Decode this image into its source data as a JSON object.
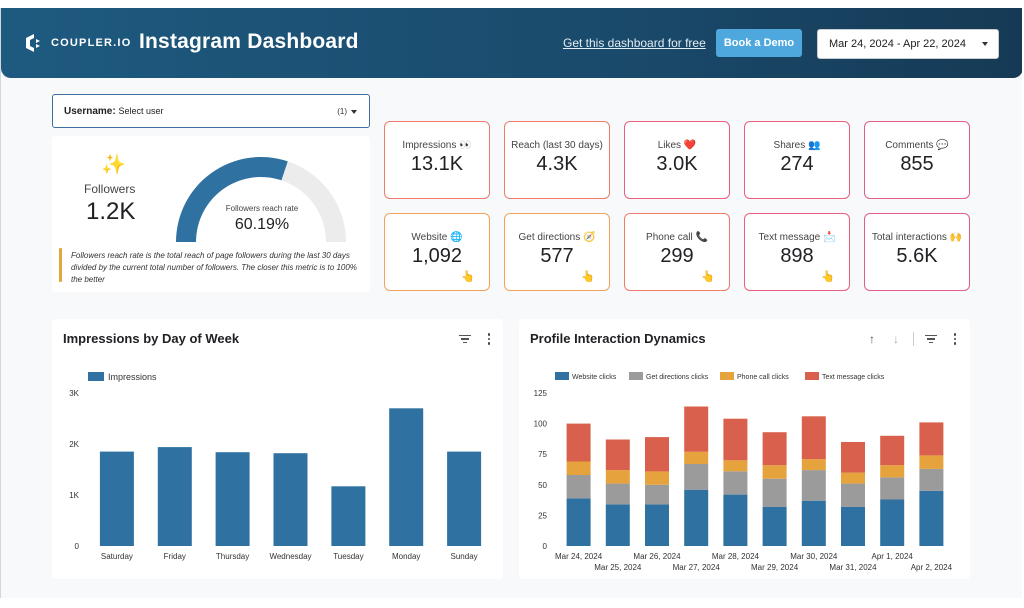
{
  "header": {
    "logo_text": "COUPLER.IO",
    "title": "Instagram Dashboard",
    "free_link": "Get this dashboard for free",
    "demo_button": "Book a Demo",
    "date_range": "Mar 24, 2024 - Apr 22, 2024"
  },
  "user_selector": {
    "label": "Username",
    "value": "Select user",
    "count": "(1)"
  },
  "followers": {
    "label": "Followers",
    "value": "1.2K",
    "gauge_label": "Followers reach rate",
    "gauge_value": "60.19%",
    "gauge_fraction": 0.6019,
    "note": "Followers reach rate is the total reach of page followers during the last 30 days divided by the current total number of followers. The closer this metric is to 100% the better"
  },
  "kpis": [
    {
      "label": "Impressions 👀",
      "value": "13.1K"
    },
    {
      "label": "Reach (last 30 days)",
      "value": "4.3K"
    },
    {
      "label": "Likes ❤️",
      "value": "3.0K"
    },
    {
      "label": "Shares 👥",
      "value": "274"
    },
    {
      "label": "Comments 💬",
      "value": "855"
    },
    {
      "label": "Website 🌐",
      "value": "1,092"
    },
    {
      "label": "Get directions 🧭",
      "value": "577"
    },
    {
      "label": "Phone call 📞",
      "value": "299"
    },
    {
      "label": "Text message 📩",
      "value": "898"
    },
    {
      "label": "Total interactions 🙌",
      "value": "5.6K"
    }
  ],
  "colors": {
    "bar": "#2f72a1",
    "website": "#2f72a1",
    "directions": "#9b9b9b",
    "phone": "#e6a23c",
    "text": "#d9604c"
  },
  "chart_data": [
    {
      "type": "bar",
      "title": "Impressions by Day of Week",
      "legend": "Impressions",
      "categories": [
        "Saturday",
        "Friday",
        "Thursday",
        "Wednesday",
        "Tuesday",
        "Monday",
        "Sunday"
      ],
      "values": [
        1850,
        1940,
        1840,
        1820,
        1170,
        2700,
        1850
      ],
      "y_ticks": [
        "0",
        "1K",
        "2K",
        "3K"
      ],
      "ylim": [
        0,
        3000
      ]
    },
    {
      "type": "bar",
      "stacked": true,
      "title": "Profile Interaction Dynamics",
      "x_labels": [
        "Mar 24, 2024",
        "Mar 25, 2024",
        "Mar 26, 2024",
        "Mar 27, 2024",
        "Mar 28, 2024",
        "Mar 29, 2024",
        "Mar 30, 2024",
        "Mar 31, 2024",
        "Apr 1, 2024",
        "Apr 2, 2024"
      ],
      "y_ticks": [
        "0",
        "25",
        "50",
        "75",
        "100",
        "125"
      ],
      "ylim": [
        0,
        125
      ],
      "series": [
        {
          "name": "Website clicks",
          "values": [
            39,
            34,
            34,
            46,
            42,
            32,
            37,
            32,
            38,
            45
          ]
        },
        {
          "name": "Get directions clicks",
          "values": [
            19,
            17,
            16,
            21,
            19,
            23,
            25,
            19,
            18,
            18
          ]
        },
        {
          "name": "Phone call clicks",
          "values": [
            11,
            11,
            11,
            10,
            9,
            11,
            9,
            9,
            10,
            11
          ]
        },
        {
          "name": "Text message clicks",
          "values": [
            31,
            25,
            28,
            37,
            34,
            27,
            35,
            25,
            24,
            27
          ]
        }
      ]
    }
  ]
}
